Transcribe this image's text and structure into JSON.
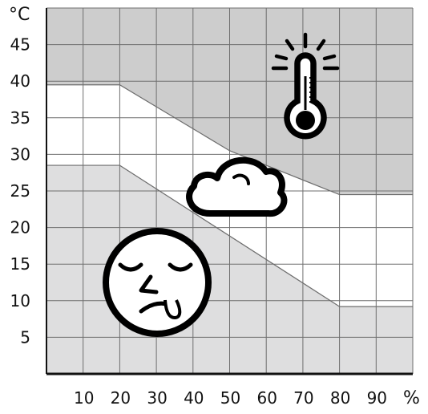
{
  "chart_data": {
    "type": "area",
    "x_unit": "%",
    "y_unit": "°C",
    "xlim": [
      0,
      100
    ],
    "ylim": [
      0,
      50
    ],
    "x_ticks": [
      10,
      20,
      30,
      40,
      50,
      60,
      70,
      80,
      90
    ],
    "y_ticks": [
      5,
      10,
      15,
      20,
      25,
      30,
      35,
      40,
      45
    ],
    "grid": true,
    "upper_boundary": {
      "x": [
        0,
        20,
        50,
        80,
        100
      ],
      "y": [
        39.5,
        39.5,
        30.5,
        24.5,
        24.5
      ]
    },
    "lower_boundary": {
      "x": [
        0,
        20,
        80,
        100
      ],
      "y": [
        28.5,
        28.5,
        9.2,
        9.2
      ]
    },
    "regions": [
      {
        "icon": "thermometer-icon",
        "color": "#cdcdcd"
      },
      {
        "icon": "cloud-icon",
        "color": "#ffffff"
      },
      {
        "icon": "sick-face-icon",
        "color": "#dededf"
      }
    ]
  }
}
